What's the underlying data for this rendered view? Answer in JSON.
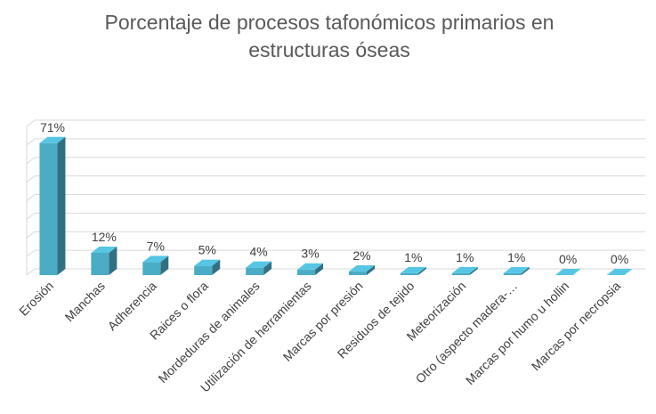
{
  "chart_data": {
    "type": "bar3d",
    "title": "Porcentaje de procesos tafonómicos primarios en estructuras óseas",
    "categories": [
      "Erosión",
      "Manchas",
      "Adherencia",
      "Raices o flora",
      "Mordeduras de animales",
      "Utilización de herramientas",
      "Marcas por presión",
      "Residuos de tejido",
      "Meteorización",
      "Otro (aspecto madera-…",
      "Marcas  por humo u hollin",
      "Marcas por necropsia"
    ],
    "values": [
      71,
      12,
      7,
      5,
      4,
      3,
      2,
      1,
      1,
      1,
      0,
      0
    ],
    "value_labels": [
      "71%",
      "12%",
      "7%",
      "5%",
      "4%",
      "3%",
      "2%",
      "1%",
      "1%",
      "1%",
      "0%",
      "0%"
    ],
    "color": "#4bacc6",
    "ylim": [
      0,
      80
    ],
    "yticks": [
      0,
      10,
      20,
      30,
      40,
      50,
      60,
      70,
      80
    ],
    "grid": true
  }
}
